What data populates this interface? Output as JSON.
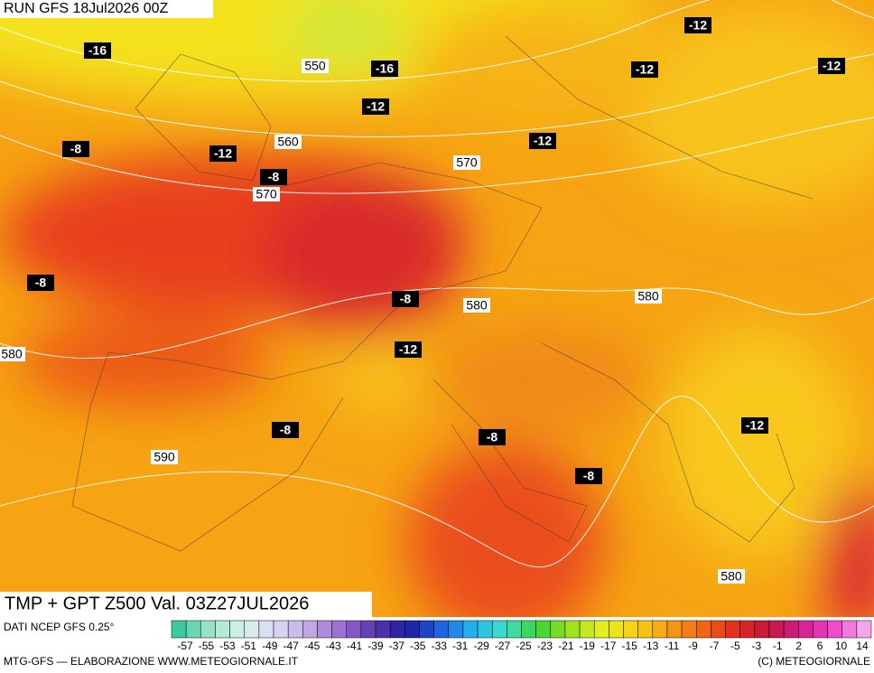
{
  "header": {
    "run": "RUN GFS 18Jul2026 00Z"
  },
  "map": {
    "temperature_labels": [
      -16,
      -16,
      -12,
      -12,
      -12,
      -12,
      -12,
      -8,
      -12,
      -8,
      -8,
      -8,
      -12,
      -8,
      -8,
      -12,
      -8
    ],
    "height_labels": [
      550,
      560,
      570,
      570,
      580,
      580,
      580,
      590,
      580
    ]
  },
  "footer": {
    "title": "TMP + GPT Z500 Val. 03Z27JUL2026",
    "source": "DATI NCEP GFS 0.25°",
    "credit": "MTG-GFS — ELABORAZIONE WWW.METEOGIORNALE.IT",
    "copyright": "(C) METEOGIORNALE",
    "scale": [
      -57,
      -55,
      -53,
      -51,
      -49,
      -47,
      -45,
      -43,
      -41,
      -39,
      -37,
      -35,
      -33,
      -31,
      -29,
      -27,
      -25,
      -23,
      -21,
      -19,
      -17,
      -15,
      -13,
      -11,
      -9,
      -7,
      -5,
      -3,
      -1,
      2,
      6,
      10,
      14
    ]
  }
}
